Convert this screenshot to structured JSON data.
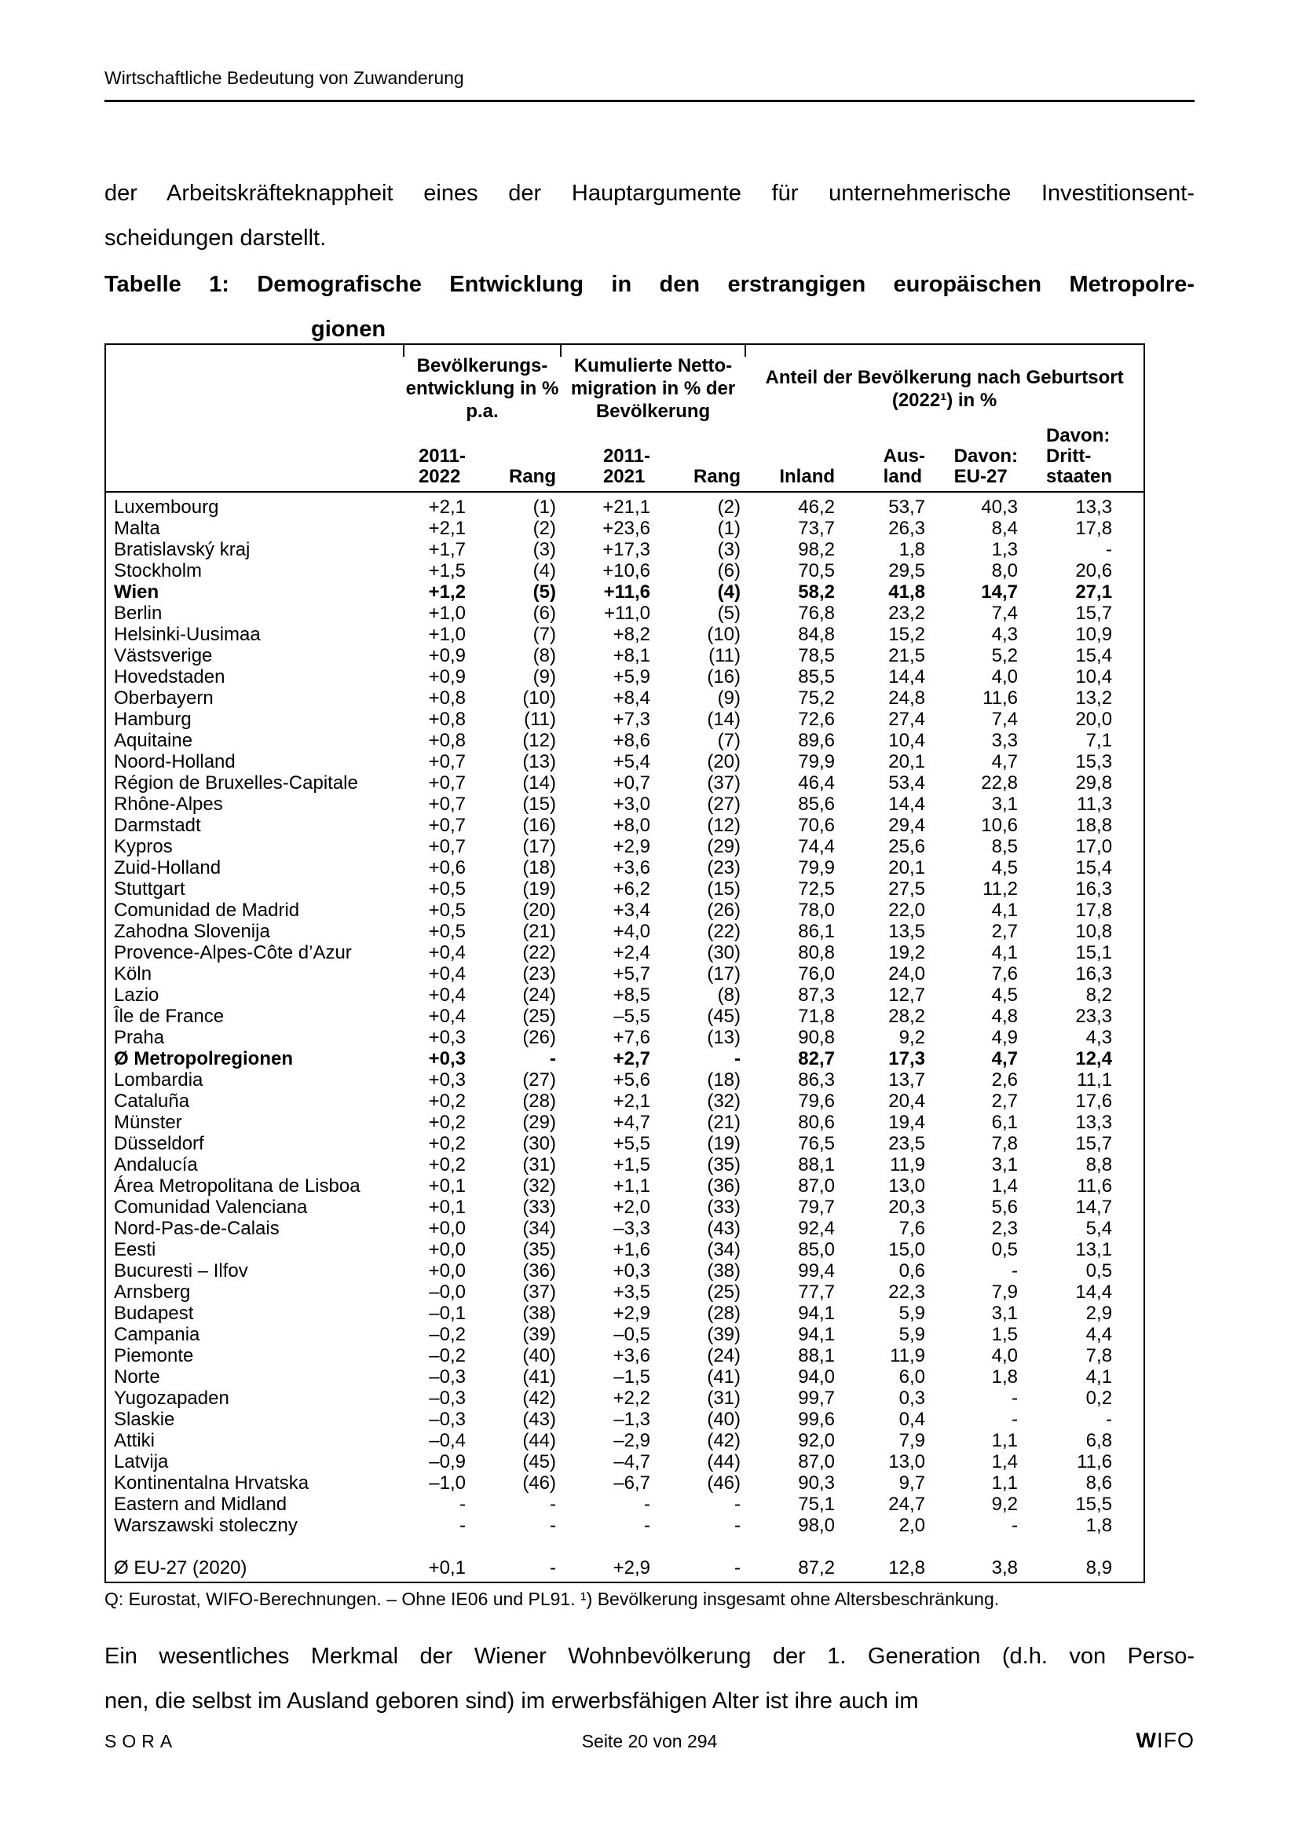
{
  "colors": {
    "text": "#000000",
    "border": "#000000",
    "background": "#ffffff"
  },
  "page": {
    "running_header": "Wirtschaftliche Bedeutung von Zuwanderung",
    "intro": {
      "line1": "der Arbeitskräfteknappheit eines der Hauptargumente für unternehmerische Investitionsent-",
      "line2": "scheidungen darstellt."
    },
    "caption": {
      "line1": "Tabelle 1: Demografische Entwicklung in den erstrangigen europäischen Metropolre-",
      "line2": "gionen"
    },
    "footnote": "Q: Eurostat, WIFO-Berechnungen. – Ohne IE06 und PL91. ¹) Bevölkerung insgesamt ohne Altersbeschränkung.",
    "closing": {
      "line1": "Ein wesentliches Merkmal der Wiener Wohnbevölkerung der 1. Generation (d.h. von Perso-",
      "line2": "nen, die selbst im Ausland geboren sind) im erwerbsfähigen Alter ist ihre auch im"
    },
    "footer": {
      "left": "SORA",
      "center": "Seite 20 von 294",
      "right_w": "W",
      "right_ifo": "IFO"
    }
  },
  "table": {
    "header": {
      "groups": [
        {
          "label": "Bevölkerungs-\nentwicklung in %\np.a.",
          "span": 2
        },
        {
          "label": "Kumulierte Netto-\nmigration in % der\nBevölkerung",
          "span": 2
        },
        {
          "label": "Anteil der Bevölkerung nach Geburtsort\n(2022¹) in %",
          "span": 4
        }
      ],
      "columns": [
        "2011-\n2022",
        "Rang",
        "2011-\n2021",
        "Rang",
        "Inland",
        "Aus-\nland",
        "Davon:\nEU-27",
        "Davon:\nDritt-\nstaaten"
      ]
    },
    "rows": [
      {
        "region": "Luxembourg",
        "bold": false,
        "values": [
          "+2,1",
          "(1)",
          "+21,1",
          "(2)",
          "46,2",
          "53,7",
          "40,3",
          "13,3"
        ]
      },
      {
        "region": "Malta",
        "bold": false,
        "values": [
          "+2,1",
          "(2)",
          "+23,6",
          "(1)",
          "73,7",
          "26,3",
          "8,4",
          "17,8"
        ]
      },
      {
        "region": "Bratislavský kraj",
        "bold": false,
        "values": [
          "+1,7",
          "(3)",
          "+17,3",
          "(3)",
          "98,2",
          "1,8",
          "1,3",
          "-"
        ]
      },
      {
        "region": "Stockholm",
        "bold": false,
        "values": [
          "+1,5",
          "(4)",
          "+10,6",
          "(6)",
          "70,5",
          "29,5",
          "8,0",
          "20,6"
        ]
      },
      {
        "region": "Wien",
        "bold": true,
        "values": [
          "+1,2",
          "(5)",
          "+11,6",
          "(4)",
          "58,2",
          "41,8",
          "14,7",
          "27,1"
        ]
      },
      {
        "region": "Berlin",
        "bold": false,
        "values": [
          "+1,0",
          "(6)",
          "+11,0",
          "(5)",
          "76,8",
          "23,2",
          "7,4",
          "15,7"
        ]
      },
      {
        "region": "Helsinki-Uusimaa",
        "bold": false,
        "values": [
          "+1,0",
          "(7)",
          "+8,2",
          "(10)",
          "84,8",
          "15,2",
          "4,3",
          "10,9"
        ]
      },
      {
        "region": "Västsverige",
        "bold": false,
        "values": [
          "+0,9",
          "(8)",
          "+8,1",
          "(11)",
          "78,5",
          "21,5",
          "5,2",
          "15,4"
        ]
      },
      {
        "region": "Hovedstaden",
        "bold": false,
        "values": [
          "+0,9",
          "(9)",
          "+5,9",
          "(16)",
          "85,5",
          "14,4",
          "4,0",
          "10,4"
        ]
      },
      {
        "region": "Oberbayern",
        "bold": false,
        "values": [
          "+0,8",
          "(10)",
          "+8,4",
          "(9)",
          "75,2",
          "24,8",
          "11,6",
          "13,2"
        ]
      },
      {
        "region": "Hamburg",
        "bold": false,
        "values": [
          "+0,8",
          "(11)",
          "+7,3",
          "(14)",
          "72,6",
          "27,4",
          "7,4",
          "20,0"
        ]
      },
      {
        "region": "Aquitaine",
        "bold": false,
        "values": [
          "+0,8",
          "(12)",
          "+8,6",
          "(7)",
          "89,6",
          "10,4",
          "3,3",
          "7,1"
        ]
      },
      {
        "region": "Noord-Holland",
        "bold": false,
        "values": [
          "+0,7",
          "(13)",
          "+5,4",
          "(20)",
          "79,9",
          "20,1",
          "4,7",
          "15,3"
        ]
      },
      {
        "region": "Région de Bruxelles-Capitale",
        "bold": false,
        "values": [
          "+0,7",
          "(14)",
          "+0,7",
          "(37)",
          "46,4",
          "53,4",
          "22,8",
          "29,8"
        ]
      },
      {
        "region": "Rhône-Alpes",
        "bold": false,
        "values": [
          "+0,7",
          "(15)",
          "+3,0",
          "(27)",
          "85,6",
          "14,4",
          "3,1",
          "11,3"
        ]
      },
      {
        "region": "Darmstadt",
        "bold": false,
        "values": [
          "+0,7",
          "(16)",
          "+8,0",
          "(12)",
          "70,6",
          "29,4",
          "10,6",
          "18,8"
        ]
      },
      {
        "region": "Kypros",
        "bold": false,
        "values": [
          "+0,7",
          "(17)",
          "+2,9",
          "(29)",
          "74,4",
          "25,6",
          "8,5",
          "17,0"
        ]
      },
      {
        "region": "Zuid-Holland",
        "bold": false,
        "values": [
          "+0,6",
          "(18)",
          "+3,6",
          "(23)",
          "79,9",
          "20,1",
          "4,5",
          "15,4"
        ]
      },
      {
        "region": "Stuttgart",
        "bold": false,
        "values": [
          "+0,5",
          "(19)",
          "+6,2",
          "(15)",
          "72,5",
          "27,5",
          "11,2",
          "16,3"
        ]
      },
      {
        "region": "Comunidad de Madrid",
        "bold": false,
        "values": [
          "+0,5",
          "(20)",
          "+3,4",
          "(26)",
          "78,0",
          "22,0",
          "4,1",
          "17,8"
        ]
      },
      {
        "region": "Zahodna Slovenija",
        "bold": false,
        "values": [
          "+0,5",
          "(21)",
          "+4,0",
          "(22)",
          "86,1",
          "13,5",
          "2,7",
          "10,8"
        ]
      },
      {
        "region": "Provence-Alpes-Côte d’Azur",
        "bold": false,
        "values": [
          "+0,4",
          "(22)",
          "+2,4",
          "(30)",
          "80,8",
          "19,2",
          "4,1",
          "15,1"
        ]
      },
      {
        "region": "Köln",
        "bold": false,
        "values": [
          "+0,4",
          "(23)",
          "+5,7",
          "(17)",
          "76,0",
          "24,0",
          "7,6",
          "16,3"
        ]
      },
      {
        "region": "Lazio",
        "bold": false,
        "values": [
          "+0,4",
          "(24)",
          "+8,5",
          "(8)",
          "87,3",
          "12,7",
          "4,5",
          "8,2"
        ]
      },
      {
        "region": "Île de France",
        "bold": false,
        "values": [
          "+0,4",
          "(25)",
          "–5,5",
          "(45)",
          "71,8",
          "28,2",
          "4,8",
          "23,3"
        ]
      },
      {
        "region": "Praha",
        "bold": false,
        "values": [
          "+0,3",
          "(26)",
          "+7,6",
          "(13)",
          "90,8",
          "9,2",
          "4,9",
          "4,3"
        ]
      },
      {
        "region": "Ø Metropolregionen",
        "bold": true,
        "values": [
          "+0,3",
          "-",
          "+2,7",
          "-",
          "82,7",
          "17,3",
          "4,7",
          "12,4"
        ]
      },
      {
        "region": "Lombardia",
        "bold": false,
        "values": [
          "+0,3",
          "(27)",
          "+5,6",
          "(18)",
          "86,3",
          "13,7",
          "2,6",
          "11,1"
        ]
      },
      {
        "region": "Cataluña",
        "bold": false,
        "values": [
          "+0,2",
          "(28)",
          "+2,1",
          "(32)",
          "79,6",
          "20,4",
          "2,7",
          "17,6"
        ]
      },
      {
        "region": "Münster",
        "bold": false,
        "values": [
          "+0,2",
          "(29)",
          "+4,7",
          "(21)",
          "80,6",
          "19,4",
          "6,1",
          "13,3"
        ]
      },
      {
        "region": "Düsseldorf",
        "bold": false,
        "values": [
          "+0,2",
          "(30)",
          "+5,5",
          "(19)",
          "76,5",
          "23,5",
          "7,8",
          "15,7"
        ]
      },
      {
        "region": "Andalucía",
        "bold": false,
        "values": [
          "+0,2",
          "(31)",
          "+1,5",
          "(35)",
          "88,1",
          "11,9",
          "3,1",
          "8,8"
        ]
      },
      {
        "region": "Área Metropolitana de Lisboa",
        "bold": false,
        "values": [
          "+0,1",
          "(32)",
          "+1,1",
          "(36)",
          "87,0",
          "13,0",
          "1,4",
          "11,6"
        ]
      },
      {
        "region": "Comunidad Valenciana",
        "bold": false,
        "values": [
          "+0,1",
          "(33)",
          "+2,0",
          "(33)",
          "79,7",
          "20,3",
          "5,6",
          "14,7"
        ]
      },
      {
        "region": "Nord-Pas-de-Calais",
        "bold": false,
        "values": [
          "+0,0",
          "(34)",
          "–3,3",
          "(43)",
          "92,4",
          "7,6",
          "2,3",
          "5,4"
        ]
      },
      {
        "region": "Eesti",
        "bold": false,
        "values": [
          "+0,0",
          "(35)",
          "+1,6",
          "(34)",
          "85,0",
          "15,0",
          "0,5",
          "13,1"
        ]
      },
      {
        "region": "Bucuresti – Ilfov",
        "bold": false,
        "values": [
          "+0,0",
          "(36)",
          "+0,3",
          "(38)",
          "99,4",
          "0,6",
          "-",
          "0,5"
        ]
      },
      {
        "region": "Arnsberg",
        "bold": false,
        "values": [
          "–0,0",
          "(37)",
          "+3,5",
          "(25)",
          "77,7",
          "22,3",
          "7,9",
          "14,4"
        ]
      },
      {
        "region": "Budapest",
        "bold": false,
        "values": [
          "–0,1",
          "(38)",
          "+2,9",
          "(28)",
          "94,1",
          "5,9",
          "3,1",
          "2,9"
        ]
      },
      {
        "region": "Campania",
        "bold": false,
        "values": [
          "–0,2",
          "(39)",
          "–0,5",
          "(39)",
          "94,1",
          "5,9",
          "1,5",
          "4,4"
        ]
      },
      {
        "region": "Piemonte",
        "bold": false,
        "values": [
          "–0,2",
          "(40)",
          "+3,6",
          "(24)",
          "88,1",
          "11,9",
          "4,0",
          "7,8"
        ]
      },
      {
        "region": "Norte",
        "bold": false,
        "values": [
          "–0,3",
          "(41)",
          "–1,5",
          "(41)",
          "94,0",
          "6,0",
          "1,8",
          "4,1"
        ]
      },
      {
        "region": "Yugozapaden",
        "bold": false,
        "values": [
          "–0,3",
          "(42)",
          "+2,2",
          "(31)",
          "99,7",
          "0,3",
          "-",
          "0,2"
        ]
      },
      {
        "region": "Slaskie",
        "bold": false,
        "values": [
          "–0,3",
          "(43)",
          "–1,3",
          "(40)",
          "99,6",
          "0,4",
          "-",
          "-"
        ]
      },
      {
        "region": "Attiki",
        "bold": false,
        "values": [
          "–0,4",
          "(44)",
          "–2,9",
          "(42)",
          "92,0",
          "7,9",
          "1,1",
          "6,8"
        ]
      },
      {
        "region": "Latvija",
        "bold": false,
        "values": [
          "–0,9",
          "(45)",
          "–4,7",
          "(44)",
          "87,0",
          "13,0",
          "1,4",
          "11,6"
        ]
      },
      {
        "region": "Kontinentalna Hrvatska",
        "bold": false,
        "values": [
          "–1,0",
          "(46)",
          "–6,7",
          "(46)",
          "90,3",
          "9,7",
          "1,1",
          "8,6"
        ]
      },
      {
        "region": "Eastern and Midland",
        "bold": false,
        "values": [
          "-",
          "-",
          "-",
          "-",
          "75,1",
          "24,7",
          "9,2",
          "15,5"
        ]
      },
      {
        "region": "Warszawski stoleczny",
        "bold": false,
        "values": [
          "-",
          "-",
          "-",
          "-",
          "98,0",
          "2,0",
          "-",
          "1,8"
        ]
      }
    ],
    "summary_row": {
      "region": "Ø EU-27 (2020)",
      "values": [
        "+0,1",
        "-",
        "+2,9",
        "-",
        "87,2",
        "12,8",
        "3,8",
        "8,9"
      ]
    }
  }
}
